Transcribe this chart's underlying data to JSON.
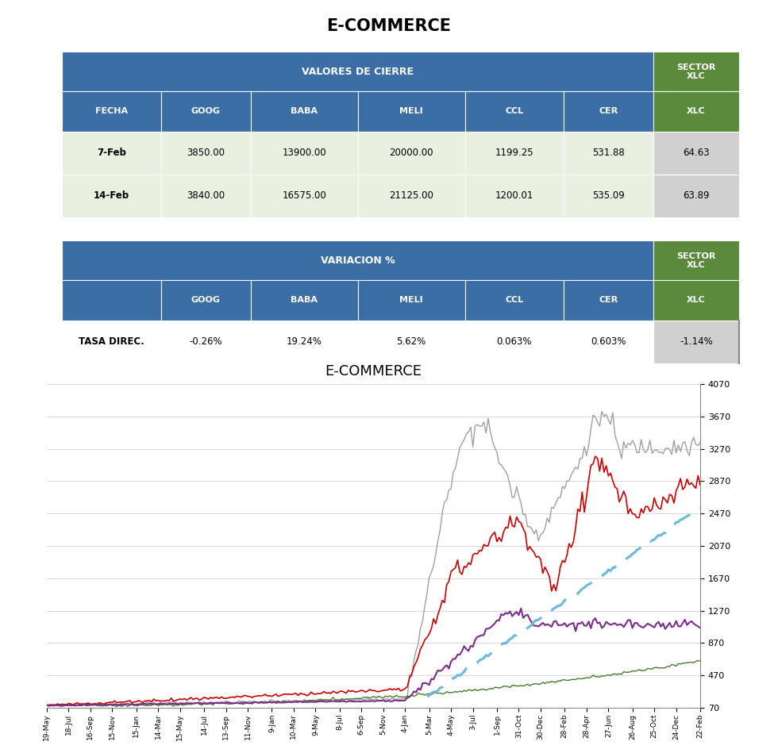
{
  "title": "E-COMMERCE",
  "table1_header_main": "VALORES DE CIERRE",
  "table1_header_sector": "SECTOR\nXLC",
  "table1_cols": [
    "FECHA",
    "GOOG",
    "BABA",
    "MELI",
    "CCL",
    "CER",
    "XLC"
  ],
  "table1_rows": [
    [
      "7-Feb",
      "3850.00",
      "13900.00",
      "20000.00",
      "1199.25",
      "531.88",
      "64.63"
    ],
    [
      "14-Feb",
      "3840.00",
      "16575.00",
      "21125.00",
      "1200.01",
      "535.09",
      "63.89"
    ]
  ],
  "table2_header_main": "VARIACION %",
  "table2_header_sector": "SECTOR\nXLC",
  "table2_cols": [
    "",
    "GOOG",
    "BABA",
    "MELI",
    "CCL",
    "CER",
    "XLC"
  ],
  "table2_rows": [
    [
      "TASA DIREC.",
      "-0.26%",
      "19.24%",
      "5.62%",
      "0.063%",
      "0.603%",
      "-1.14%"
    ]
  ],
  "blue_header_color": "#3A6EA5",
  "green_sector_color": "#5A8A3C",
  "light_green_bg": "#E8F0E0",
  "light_gray_bg": "#D0D0D0",
  "chart_title": "E-COMMERCE",
  "y_ticks": [
    70,
    470,
    870,
    1270,
    1670,
    2070,
    2470,
    2870,
    3270,
    3670,
    4070
  ],
  "x_labels": [
    "19-May",
    "18-Jul",
    "16-Sep",
    "15-Nov",
    "15-Jan",
    "14-Mar",
    "15-May",
    "14-Jul",
    "13-Sep",
    "11-Nov",
    "9-Jan",
    "10-Mar",
    "9-May",
    "8-Jul",
    "6-Sep",
    "5-Nov",
    "4-Jan",
    "5-Mar",
    "4-May",
    "3-Jul",
    "1-Sep",
    "31-Oct",
    "30-Dec",
    "28-Feb",
    "28-Apr",
    "27-Jun",
    "26-Aug",
    "25-Oct",
    "24-Dec",
    "22-Feb"
  ],
  "series_colors": {
    "GOOG": "#CC0000",
    "BABA": "#4A7A2A",
    "MELI": "#A0A0A0",
    "CCL": "#7B2D8B",
    "CER": "#6EB8E0"
  }
}
